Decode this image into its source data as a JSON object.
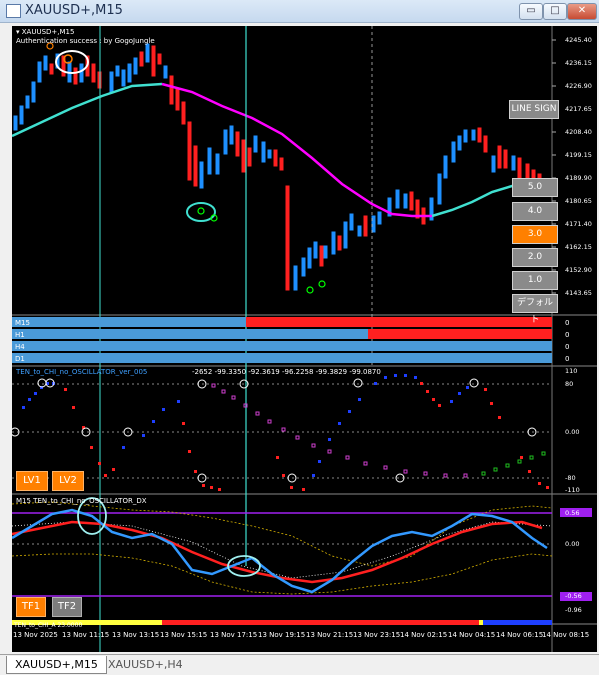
{
  "window": {
    "title": "XAUUSD+,M15",
    "minimize": "▭",
    "maximize": "□",
    "close": "✕"
  },
  "chart": {
    "symbol_line": "▾ XAUUSD+,M15",
    "auth_line": "Authentication success : by GogoJungle",
    "price_labels": [
      "4245.40",
      "4236.15",
      "4226.90",
      "4217.65",
      "4208.40",
      "4199.15",
      "4189.90",
      "4180.65",
      "4171.40",
      "4162.15",
      "4152.90",
      "4143.65"
    ],
    "line_sign": "LINE SIGN",
    "scale_buttons": [
      {
        "label": "5.0",
        "active": false
      },
      {
        "label": "4.0",
        "active": false
      },
      {
        "label": "3.0",
        "active": true
      },
      {
        "label": "2.0",
        "active": false
      },
      {
        "label": "1.0",
        "active": false
      },
      {
        "label": "デフォルト",
        "active": false
      }
    ],
    "tf_labels": [
      "M15",
      "H1",
      "H4",
      "D1"
    ],
    "tf_right": [
      "0",
      "0",
      "0",
      "0"
    ]
  },
  "osc1": {
    "title": "TEN_to_CHI_no_OSCILLATOR_ver_005",
    "values_text": "-2652 -99.3350 -92.3619 -96.2258 -99.3829 -99.0870",
    "scale": [
      "110",
      "80",
      "0.00",
      "-80",
      "-110"
    ],
    "btn_lv1": "LV1",
    "btn_lv2": "LV2"
  },
  "osc2": {
    "title": "M15 TEN_to_CHI_no_OSCILLATOR_DX",
    "scale": [
      "0.56",
      "0.00",
      "-0.56",
      "-0.96"
    ],
    "btn_tf1": "TF1",
    "btn_tf2": "TF2",
    "bottom_label": "TEN_to_CHI_A 23.0000"
  },
  "time_axis": [
    "13 Nov 2025",
    "13 Nov 11:15",
    "13 Nov 13:15",
    "13 Nov 15:15",
    "13 Nov 17:15",
    "13 Nov 19:15",
    "13 Nov 21:15",
    "13 Nov 23:15",
    "14 Nov 02:15",
    "14 Nov 04:15",
    "14 Nov 06:15",
    "14 Nov 08:15"
  ],
  "tabs": [
    {
      "label": "XAUUSD+,M15",
      "active": true
    },
    {
      "label": "XAUUSD+,H4",
      "active": false
    }
  ],
  "colors": {
    "bull": "#1e90ff",
    "bear": "#ff2020",
    "ma_up": "#40e0d0",
    "ma_down": "#ff00ff",
    "accent": "#ff8000"
  }
}
